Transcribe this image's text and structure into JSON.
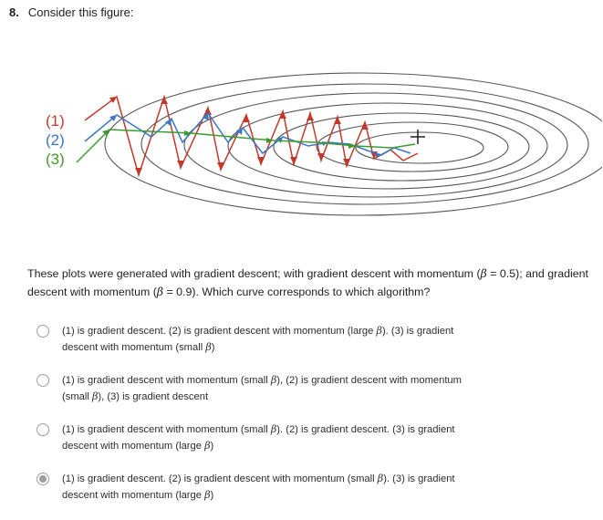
{
  "question": {
    "number": "8.",
    "prompt": "Consider this figure:",
    "body_line1": "These plots were generated with gradient descent; with gradient descent with momentum (",
    "beta_symbol": "β",
    "body_beta1": " = 0.5); and gradient",
    "body_line2": "descent with momentum (",
    "body_beta2": " = 0.9). Which curve corresponds to which algorithm?"
  },
  "figure": {
    "labels": [
      "(1)",
      "(2)",
      "(3)"
    ],
    "colors": {
      "curve1": "#c0392b",
      "curve2": "#3a78c3",
      "curve3": "#3d9a2e",
      "contour": "#555555",
      "label": "#888888"
    },
    "optimum_marker": "+"
  },
  "options": [
    {
      "a": "(1) is gradient descent. (2) is gradient descent with momentum (large ",
      "b": "). (3) is gradient",
      "c": "descent with momentum (small ",
      "d": ")",
      "selected": false
    },
    {
      "a": "(1) is gradient descent with momentum (small ",
      "b": "), (2) is gradient descent with momentum",
      "c": "(small ",
      "d": "), (3) is gradient descent",
      "selected": false
    },
    {
      "a": "(1) is gradient descent with momentum (small ",
      "b": "). (2) is gradient descent. (3) is gradient",
      "c": "descent with momentum (large ",
      "d": ")",
      "selected": false
    },
    {
      "a": "(1) is gradient descent. (2) is gradient descent with momentum (small ",
      "b": "). (3) is gradient",
      "c": "descent with momentum (large ",
      "d": ")",
      "selected": true
    }
  ]
}
